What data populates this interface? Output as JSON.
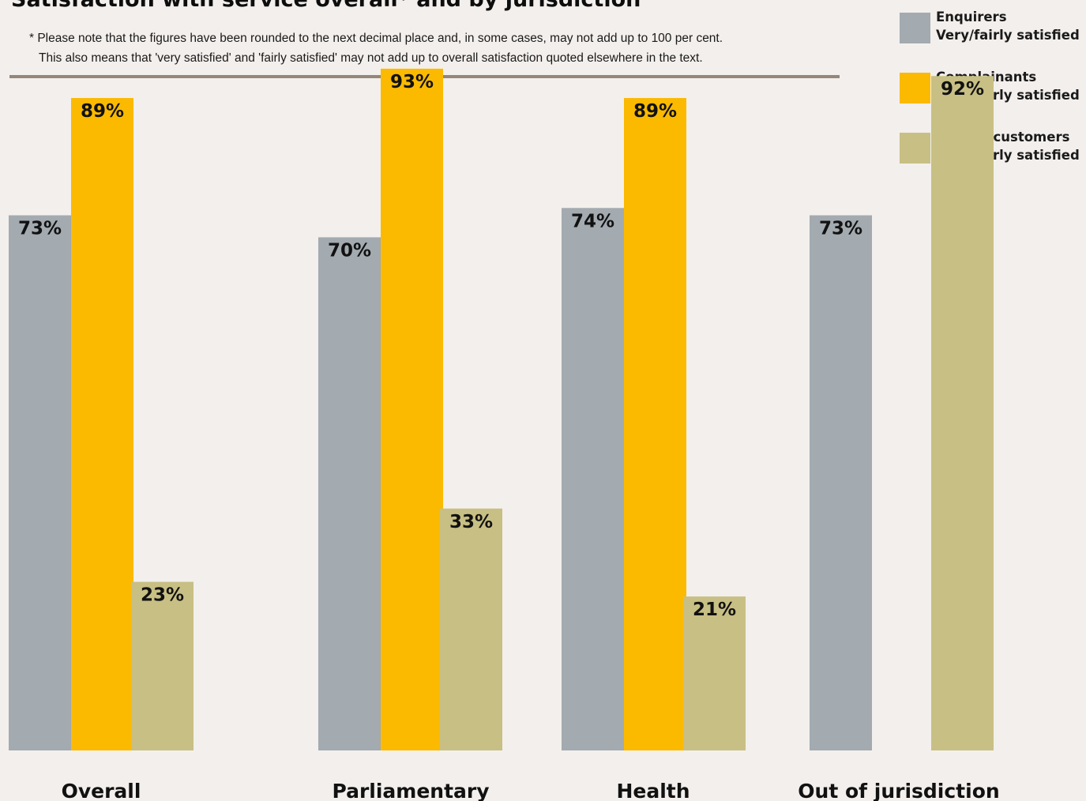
{
  "chart_data": {
    "type": "bar",
    "title": "Satisfaction with service overall* and by jurisdiction",
    "footnote": {
      "line1": "* Please note that the figures have been rounded to the next decimal place and, in some cases, may not add up to 100 per cent.",
      "line2": "This also means that 'very satisfied' and 'fairly satisfied' may not add up to overall satisfaction quoted elsewhere in the text."
    },
    "categories": [
      "Overall",
      "Parliamentary",
      "Health",
      "Out of jurisdiction"
    ],
    "series": [
      {
        "name": "Enquirers Very/fairly satisfied",
        "name_line1": "Enquirers",
        "name_line2": "Very/fairly satisfied",
        "color": "#a3aab0",
        "values": [
          73,
          70,
          74,
          73
        ],
        "labels": [
          "73%",
          "70%",
          "74%",
          "73%"
        ]
      },
      {
        "name": "Complainants Very/fairly satisfied",
        "name_line1": "Complainants",
        "name_line2": "Very/fairly satisfied",
        "color": "#fbba00",
        "values": [
          89,
          93,
          89,
          null
        ],
        "labels": [
          "89%",
          "93%",
          "89%",
          null
        ]
      },
      {
        "name": "Review customers Very/fairly satisfied",
        "name_line1": "Review customers",
        "name_line2": "Very/fairly satisfied",
        "color": "#c8bf84",
        "values": [
          23,
          33,
          21,
          92
        ],
        "labels": [
          "23%",
          "33%",
          "21%",
          "92%"
        ]
      }
    ],
    "ylim": [
      0,
      100
    ],
    "grid": false,
    "legend_position": "top-right",
    "xlabel": "",
    "ylabel": ""
  }
}
